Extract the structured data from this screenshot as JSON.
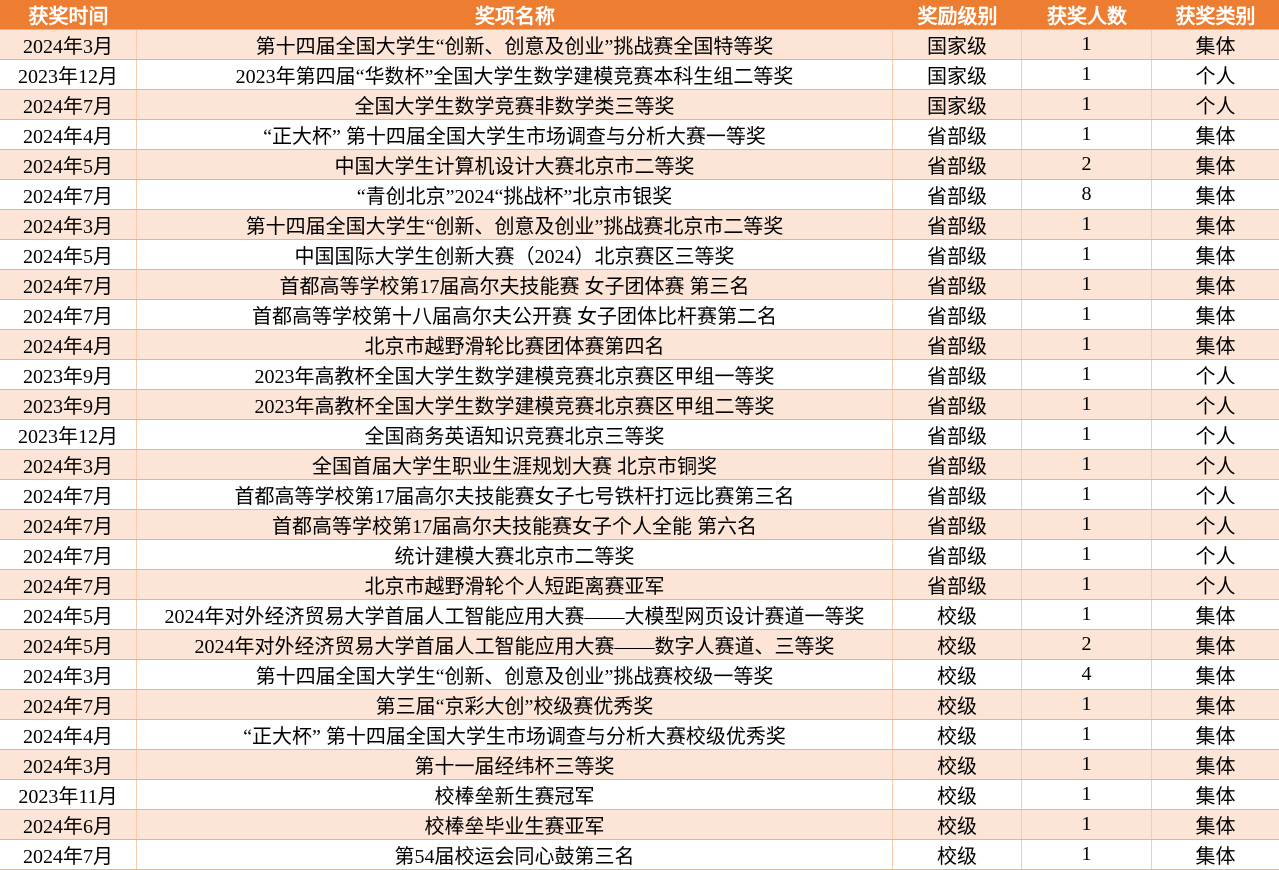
{
  "colors": {
    "header_bg": "#ED7D31",
    "alt_row_bg": "#FCE4D6",
    "border": "#F4B084"
  },
  "headers": [
    "获奖时间",
    "奖项名称",
    "奖励级别",
    "获奖人数",
    "获奖类别"
  ],
  "rows": [
    [
      "2024年3月",
      "第十四届全国大学生“创新、创意及创业”挑战赛全国特等奖",
      "国家级",
      "1",
      "集体"
    ],
    [
      "2023年12月",
      "2023年第四届“华数杯”全国大学生数学建模竞赛本科生组二等奖",
      "国家级",
      "1",
      "个人"
    ],
    [
      "2024年7月",
      "全国大学生数学竞赛非数学类三等奖",
      "国家级",
      "1",
      "个人"
    ],
    [
      "2024年4月",
      "“正大杯” 第十四届全国大学生市场调查与分析大赛一等奖",
      "省部级",
      "1",
      "集体"
    ],
    [
      "2024年5月",
      "中国大学生计算机设计大赛北京市二等奖",
      "省部级",
      "2",
      "集体"
    ],
    [
      "2024年7月",
      "“青创北京”2024“挑战杯”北京市银奖",
      "省部级",
      "8",
      "集体"
    ],
    [
      "2024年3月",
      "第十四届全国大学生“创新、创意及创业”挑战赛北京市二等奖",
      "省部级",
      "1",
      "集体"
    ],
    [
      "2024年5月",
      "中国国际大学生创新大赛（2024）北京赛区三等奖",
      "省部级",
      "1",
      "集体"
    ],
    [
      "2024年7月",
      "首都高等学校第17届高尔夫技能赛  女子团体赛  第三名",
      "省部级",
      "1",
      "集体"
    ],
    [
      "2024年7月",
      "首都高等学校第十八届高尔夫公开赛  女子团体比杆赛第二名",
      "省部级",
      "1",
      "集体"
    ],
    [
      "2024年4月",
      "北京市越野滑轮比赛团体赛第四名",
      "省部级",
      "1",
      "集体"
    ],
    [
      "2023年9月",
      "2023年高教杯全国大学生数学建模竞赛北京赛区甲组一等奖",
      "省部级",
      "1",
      "个人"
    ],
    [
      "2023年9月",
      "2023年高教杯全国大学生数学建模竞赛北京赛区甲组二等奖",
      "省部级",
      "1",
      "个人"
    ],
    [
      "2023年12月",
      "全国商务英语知识竞赛北京三等奖",
      "省部级",
      "1",
      "个人"
    ],
    [
      "2024年3月",
      "全国首届大学生职业生涯规划大赛  北京市铜奖",
      "省部级",
      "1",
      "个人"
    ],
    [
      "2024年7月",
      "首都高等学校第17届高尔夫技能赛女子七号铁杆打远比赛第三名",
      "省部级",
      "1",
      "个人"
    ],
    [
      "2024年7月",
      "首都高等学校第17届高尔夫技能赛女子个人全能  第六名",
      "省部级",
      "1",
      "个人"
    ],
    [
      "2024年7月",
      "统计建模大赛北京市二等奖",
      "省部级",
      "1",
      "个人"
    ],
    [
      "2024年7月",
      "北京市越野滑轮个人短距离赛亚军",
      "省部级",
      "1",
      "个人"
    ],
    [
      "2024年5月",
      "2024年对外经济贸易大学首届人工智能应用大赛——大模型网页设计赛道一等奖",
      "校级",
      "1",
      "集体"
    ],
    [
      "2024年5月",
      "2024年对外经济贸易大学首届人工智能应用大赛——数字人赛道、三等奖",
      "校级",
      "2",
      "集体"
    ],
    [
      "2024年3月",
      "第十四届全国大学生“创新、创意及创业”挑战赛校级一等奖",
      "校级",
      "4",
      "集体"
    ],
    [
      "2024年7月",
      "第三届“京彩大创”校级赛优秀奖",
      "校级",
      "1",
      "集体"
    ],
    [
      "2024年4月",
      "“正大杯” 第十四届全国大学生市场调查与分析大赛校级优秀奖",
      "校级",
      "1",
      "集体"
    ],
    [
      "2024年3月",
      "第十一届经纬杯三等奖",
      "校级",
      "1",
      "集体"
    ],
    [
      "2023年11月",
      "校棒垒新生赛冠军",
      "校级",
      "1",
      "集体"
    ],
    [
      "2024年6月",
      "校棒垒毕业生赛亚军",
      "校级",
      "1",
      "集体"
    ],
    [
      "2024年7月",
      "第54届校运会同心鼓第三名",
      "校级",
      "1",
      "集体"
    ]
  ]
}
